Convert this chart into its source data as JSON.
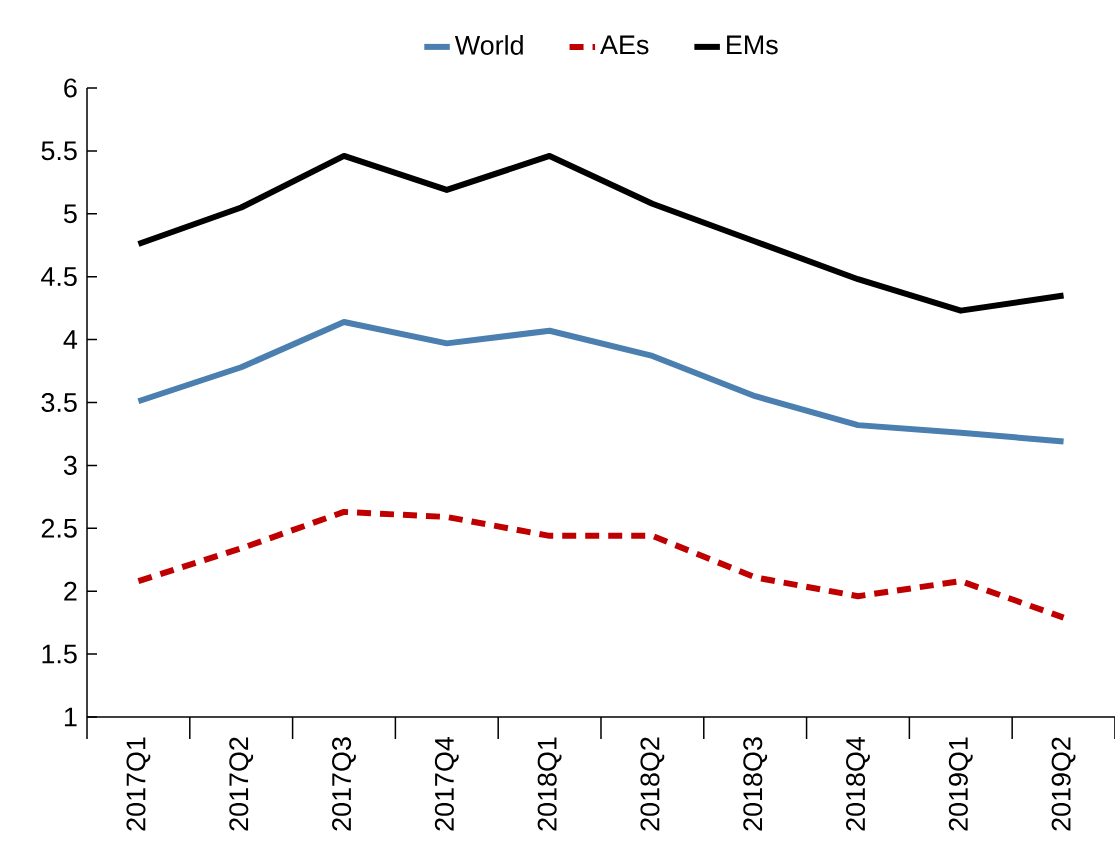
{
  "chart_data": {
    "type": "line",
    "categories": [
      "2017Q1",
      "2017Q2",
      "2017Q3",
      "2017Q4",
      "2018Q1",
      "2018Q2",
      "2018Q3",
      "2018Q4",
      "2019Q1",
      "2019Q2"
    ],
    "series": [
      {
        "name": "World",
        "color": "#4a7fb0",
        "line_style": "solid",
        "values": [
          3.51,
          3.78,
          4.14,
          3.97,
          4.07,
          3.87,
          3.55,
          3.32,
          3.26,
          3.19
        ]
      },
      {
        "name": "AEs",
        "color": "#c00000",
        "line_style": "dashed",
        "values": [
          2.08,
          2.34,
          2.63,
          2.59,
          2.44,
          2.44,
          2.11,
          1.96,
          2.08,
          1.79
        ]
      },
      {
        "name": "EMs",
        "color": "#000000",
        "line_style": "solid",
        "values": [
          4.76,
          5.05,
          5.46,
          5.19,
          5.46,
          5.08,
          4.78,
          4.48,
          4.23,
          4.35
        ]
      }
    ],
    "ylim": [
      1,
      6
    ],
    "yticks": [
      1,
      1.5,
      2,
      2.5,
      3,
      3.5,
      4,
      4.5,
      5,
      5.5,
      6
    ],
    "legend": "top",
    "grid": false
  }
}
